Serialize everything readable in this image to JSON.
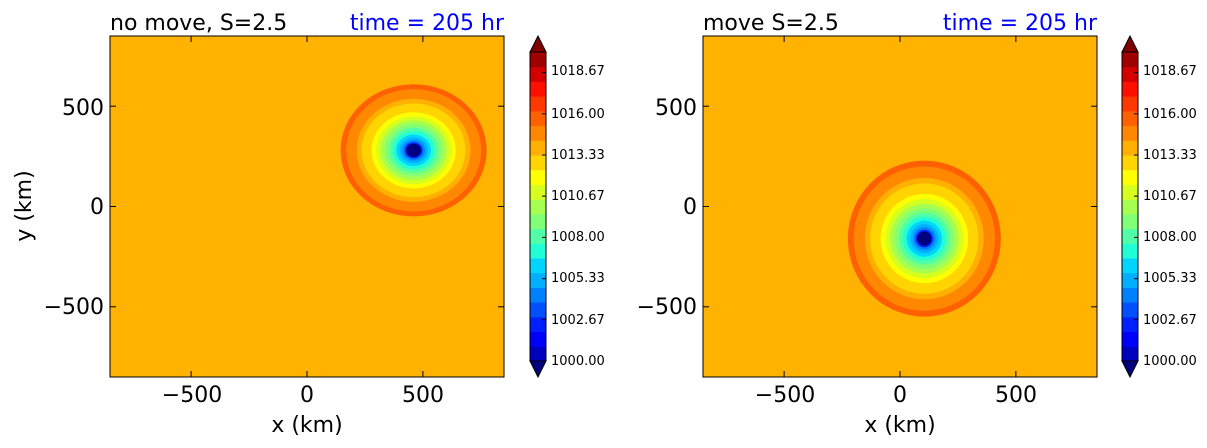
{
  "figure": {
    "colors": {
      "time_title": "#0000ff",
      "text": "#000000",
      "background_field": "#ffb300"
    }
  },
  "chart_data": [
    {
      "type": "heatmap",
      "title_left": "no move, S=2.5",
      "title_right": "time = 205 hr",
      "xlabel": "x (km)",
      "ylabel": "y (km)",
      "xlim": [
        -850,
        850
      ],
      "ylim": [
        -850,
        850
      ],
      "xticks": [
        "−500",
        "0",
        "500"
      ],
      "xtick_values": [
        -500,
        0,
        500
      ],
      "yticks": [
        "−500",
        "0",
        "500"
      ],
      "ytick_values": [
        -500,
        0,
        500
      ],
      "center": {
        "x": 460,
        "y": 280
      },
      "min_value": 1000.0,
      "background_value": 1015.3,
      "colorbar_extend": "both"
    },
    {
      "type": "heatmap",
      "title_left": "move S=2.5",
      "title_right": "time = 205 hr",
      "xlabel": "x (km)",
      "ylabel": "",
      "xlim": [
        -850,
        850
      ],
      "ylim": [
        -850,
        850
      ],
      "xticks": [
        "−500",
        "0",
        "500"
      ],
      "xtick_values": [
        -500,
        0,
        500
      ],
      "yticks": [
        "−500",
        "0",
        "500"
      ],
      "ytick_values": [
        -500,
        0,
        500
      ],
      "center": {
        "x": 105,
        "y": -160
      },
      "min_value": 1000.0,
      "background_value": 1015.3,
      "colorbar_extend": "both"
    }
  ],
  "colorbar": {
    "tick_labels": [
      "1018.67",
      "1016.00",
      "1013.33",
      "1010.67",
      "1008.00",
      "1005.33",
      "1002.67",
      "1000.00"
    ],
    "tick_values": [
      1018.67,
      1016.0,
      1013.33,
      1010.67,
      1008.0,
      1005.33,
      1002.67,
      1000.0
    ],
    "range": [
      1000.0,
      1020.0
    ],
    "colors": [
      "#00007f",
      "#0000bf",
      "#0000ff",
      "#0020ff",
      "#0050ff",
      "#0080ff",
      "#00b0ff",
      "#00d4ff",
      "#20ffd6",
      "#50ffa6",
      "#80ff77",
      "#a6ff50",
      "#d6ff20",
      "#ffff00",
      "#ffd400",
      "#ffb000",
      "#ff8800",
      "#ff6000",
      "#ff3800",
      "#ff1000",
      "#d40000",
      "#a00000",
      "#7f0000"
    ]
  }
}
